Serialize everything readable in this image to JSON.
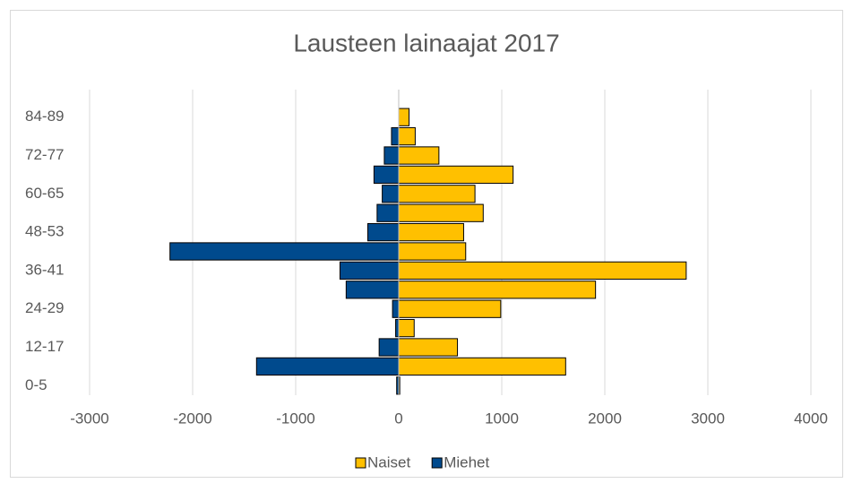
{
  "chart_data": {
    "type": "bar",
    "orientation": "horizontal",
    "title": "Lausteen lainaajat 2017",
    "categories": [
      "0-5",
      null,
      "12-17",
      null,
      "24-29",
      null,
      "36-41",
      null,
      "48-53",
      null,
      "60-65",
      null,
      "72-77",
      null,
      "84-89"
    ],
    "series": [
      {
        "name": "Naiset",
        "color": "#ffc000",
        "values": [
          10,
          1620,
          570,
          150,
          990,
          1910,
          2790,
          650,
          630,
          820,
          740,
          1110,
          390,
          160,
          100
        ]
      },
      {
        "name": "Miehet",
        "color": "#004a8d",
        "values": [
          -20,
          -1380,
          -190,
          -30,
          -60,
          -510,
          -570,
          -2220,
          -300,
          -210,
          -160,
          -240,
          -140,
          -70,
          0
        ]
      }
    ],
    "xlim": [
      -3000,
      4000
    ],
    "xticks": [
      -3000,
      -2000,
      -1000,
      0,
      1000,
      2000,
      3000,
      4000
    ],
    "grid": true,
    "legend": "bottom"
  }
}
